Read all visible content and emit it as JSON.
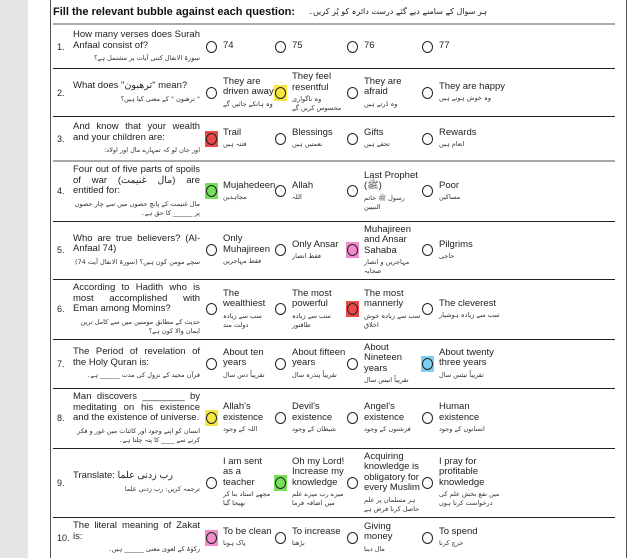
{
  "header": {
    "title": "Fill the relevant bubble against each question:",
    "title_urdu": "ہر سوال کے سامنے دیے گئے درست دائرہ کو پُر کریں۔"
  },
  "colors": {
    "yellow": "#f5e642",
    "red": "#e84a4a",
    "green": "#77e05a",
    "pink": "#f08ccc",
    "blue": "#7fd0f0"
  },
  "questions": [
    {
      "num": "1.",
      "text": "How many verses does Surah Anfaal consist of?",
      "urdu": "سورۃ الانفال کتنی آیات پر مشتمل ہے؟",
      "options": [
        {
          "en": "74",
          "ur": ""
        },
        {
          "en": "75",
          "ur": ""
        },
        {
          "en": "76",
          "ur": ""
        },
        {
          "en": "77",
          "ur": ""
        }
      ],
      "selected": null,
      "color": null
    },
    {
      "num": "2.",
      "text": "What does \"ترھبون\" mean?",
      "urdu": "\" ترھبون \" کے معنی کیا ہیں؟",
      "options": [
        {
          "en": "They are driven away",
          "ur": "وہ ہانکے جائیں گے"
        },
        {
          "en": "They feel resentful",
          "ur": "وہ ناگواری محسوس کریں گے"
        },
        {
          "en": "They are afraid",
          "ur": "وہ ڈرتے ہیں"
        },
        {
          "en": "They are happy",
          "ur": "وہ خوش ہوتے ہیں"
        }
      ],
      "selected": 1,
      "color": "yellow"
    },
    {
      "num": "3.",
      "text": "And know that your wealth and your children are:",
      "urdu": "اور جان لو کہ تمہارے مال اور اولاد:",
      "options": [
        {
          "en": "Trail",
          "ur": "فتنہ ہیں"
        },
        {
          "en": "Blessings",
          "ur": "نعمتیں ہیں"
        },
        {
          "en": "Gifts",
          "ur": "تحفے ہیں"
        },
        {
          "en": "Rewards",
          "ur": "انعام ہیں"
        }
      ],
      "selected": 0,
      "color": "red"
    },
    {
      "num": "4.",
      "text": "Four out of five parts of spoils of war (مال غنیمت) are entitled for:",
      "urdu": "مال غنیمت کے پانچ حصوں میں سے چار حصوں پر ______ کا حق ہے۔",
      "options": [
        {
          "en": "Mujahedeen",
          "ur": "مجاہدین"
        },
        {
          "en": "Allah",
          "ur": "اللہ"
        },
        {
          "en": "Last Prophet (ﷺ)",
          "ur": "رسول ﷺ خاتم النبیین"
        },
        {
          "en": "Poor",
          "ur": "مساکین"
        }
      ],
      "selected": 0,
      "color": "green"
    },
    {
      "num": "5.",
      "text": "Who are true believers? (Al-Anfaal 74)",
      "urdu": "سچے مومن کون ہیں؟ (سورۃ الانفال آیت 74)",
      "options": [
        {
          "en": "Only Muhajireen",
          "ur": "فقط مہاجرین"
        },
        {
          "en": "Only Ansar",
          "ur": "فقط انصار"
        },
        {
          "en": "Muhajireen and Ansar Sahaba",
          "ur": "مہاجرین و انصار صحابہ"
        },
        {
          "en": "Pilgrims",
          "ur": "حاجی"
        }
      ],
      "selected": 2,
      "color": "pink"
    },
    {
      "num": "6.",
      "text": "According to Hadith who is most accomplished with Eman among Momins?",
      "urdu": "حدیث کے مطابق مومنین میں سے کامل ترین ایمان والا کون ہے؟",
      "options": [
        {
          "en": "The wealthiest",
          "ur": "سب سے زیادہ دولت مند"
        },
        {
          "en": "The most powerful",
          "ur": "سب سے زیادہ طاقتور"
        },
        {
          "en": "The most mannerly",
          "ur": "سب سے زیادہ خوش اخلاق"
        },
        {
          "en": "The cleverest",
          "ur": "سب سے زیادہ ہوشیار"
        }
      ],
      "selected": 2,
      "color": "red"
    },
    {
      "num": "7.",
      "text": "The Period of revelation of the Holy Quran is:",
      "urdu": "قرآن مجید کے نزول کی مدت ______ ہے۔",
      "options": [
        {
          "en": "About ten years",
          "ur": "تقریباً دس سال"
        },
        {
          "en": "About fifteen years",
          "ur": "تقریباً پندرہ سال"
        },
        {
          "en": "About Nineteen years",
          "ur": "تقریباً انیس سال"
        },
        {
          "en": "About twenty three years",
          "ur": "تقریباً تیئس سال"
        }
      ],
      "selected": 3,
      "color": "blue"
    },
    {
      "num": "8.",
      "text": "Man discovers ________ by meditating on his existence and the existence of universe.",
      "urdu": "انسان کو اپنے وجود اور کائنات میں غور و فکر کرنے سے ____ کا پتہ چلتا ہے۔",
      "options": [
        {
          "en": "Allah's existence",
          "ur": "اللہ کے وجود"
        },
        {
          "en": "Devil's existence",
          "ur": "شیطان کے وجود"
        },
        {
          "en": "Angel's existence",
          "ur": "فرشتوں کے وجود"
        },
        {
          "en": "Human existence",
          "ur": "انسانوں کے وجود"
        }
      ],
      "selected": 0,
      "color": "yellow"
    },
    {
      "num": "9.",
      "text": "Translate: رب زدنی علما",
      "urdu": "ترجمہ کریں: رب زدنی علما",
      "options": [
        {
          "en": "I am sent as a teacher",
          "ur": "مجھے استاد بنا کر بھیجا گیا"
        },
        {
          "en": "Oh my Lord! Increase my knowledge",
          "ur": "میرے رب میرے علم میں اضافہ فرما"
        },
        {
          "en": "Acquiring knowledge is obligatory for every Muslim",
          "ur": "ہر مسلمان پر علم حاصل کرنا فرض ہے"
        },
        {
          "en": "I pray for profitable knowledge",
          "ur": "میں نفع بخش علم کی درخواست کرتا ہوں"
        }
      ],
      "selected": 1,
      "color": "green"
    },
    {
      "num": "10.",
      "text": "The literal meaning of Zakat is:",
      "urdu": "زکوٰۃ کے لغوی معنی ______ ہیں۔",
      "options": [
        {
          "en": "To be clean",
          "ur": "پاک ہونا"
        },
        {
          "en": "To increase",
          "ur": "بڑھنا"
        },
        {
          "en": "Giving money",
          "ur": "مال دینا"
        },
        {
          "en": "To spend",
          "ur": "خرچ کرنا"
        }
      ],
      "selected": 0,
      "color": "pink"
    }
  ]
}
